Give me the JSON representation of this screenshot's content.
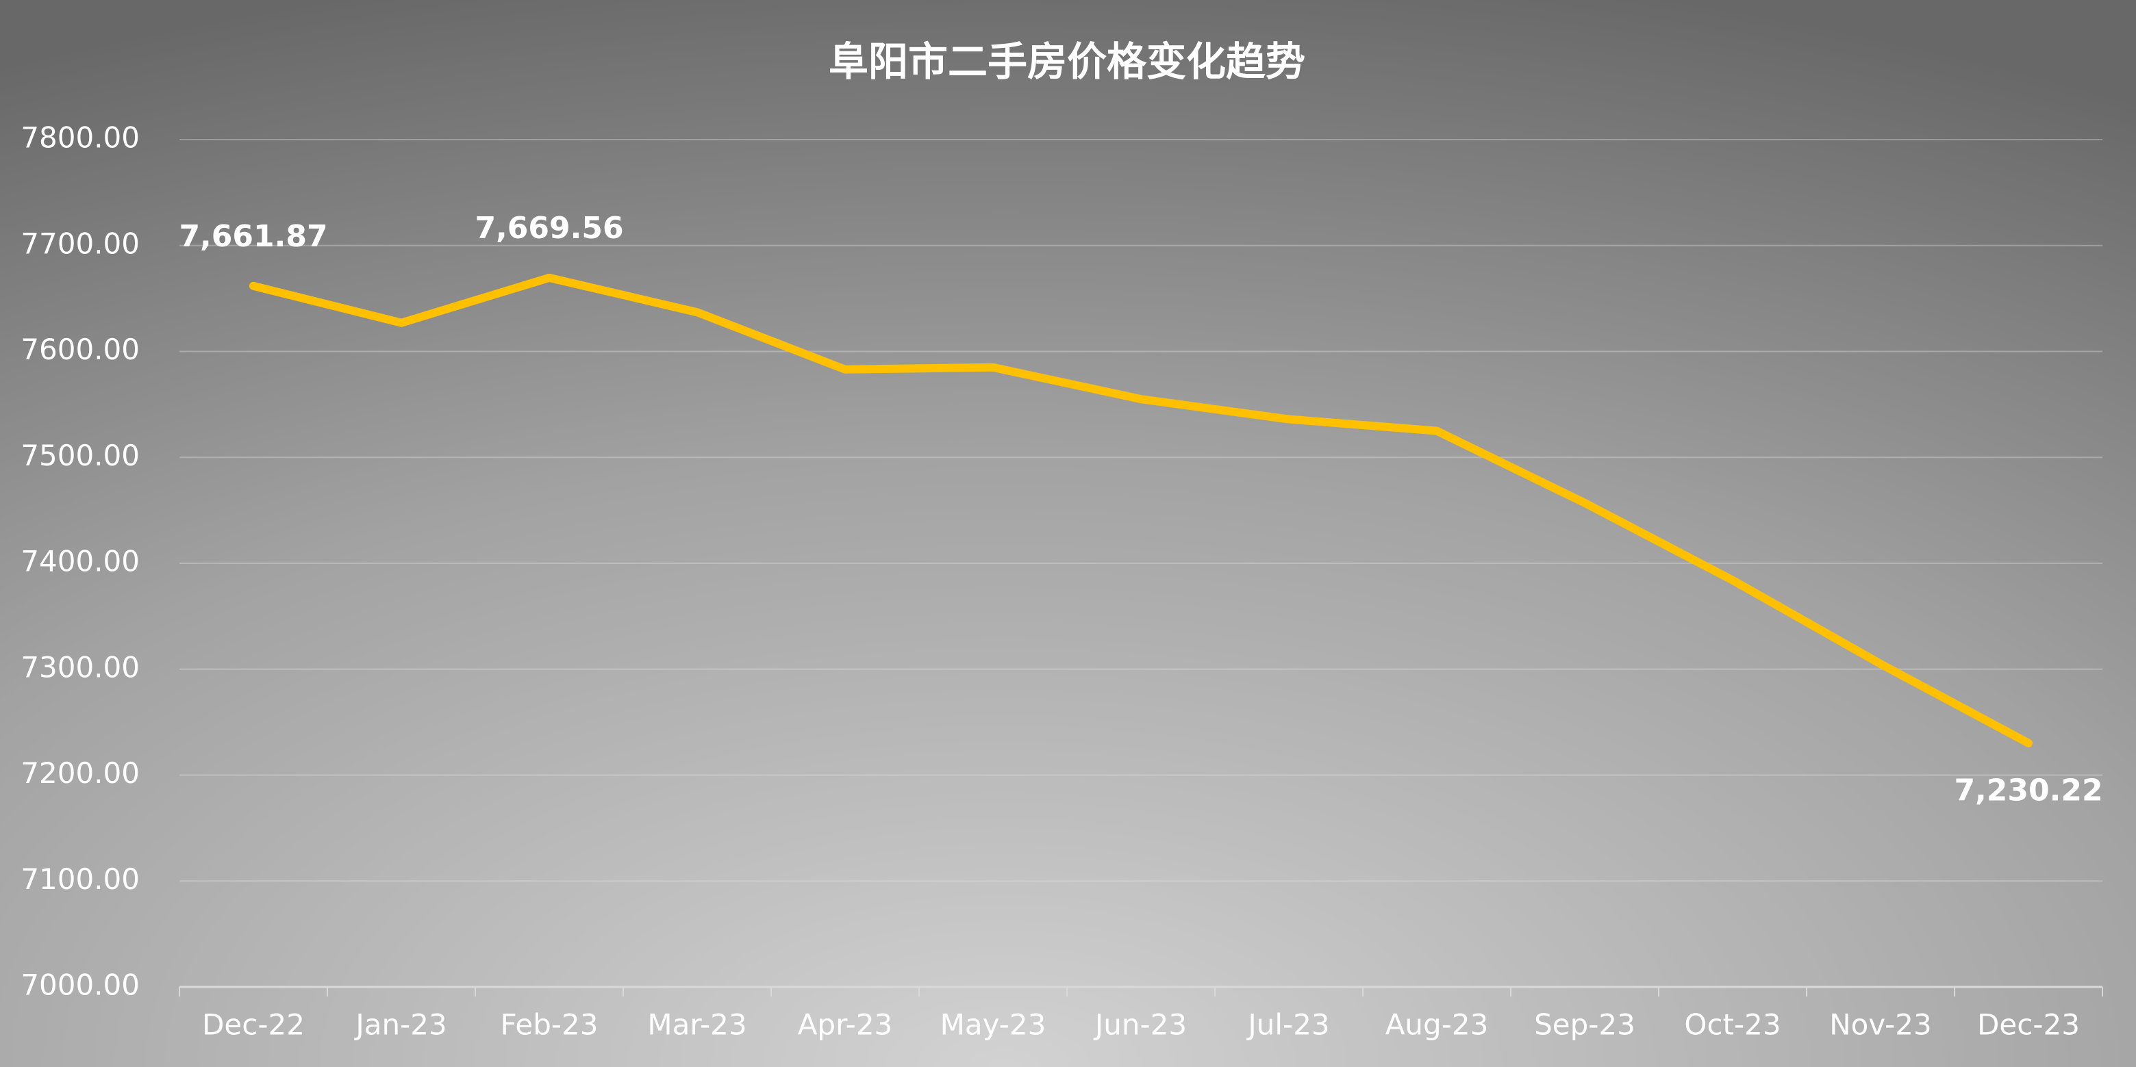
{
  "chart_data": {
    "type": "line",
    "title": "阜阳市二手房价格变化趋势",
    "categories": [
      "Dec-22",
      "Jan-23",
      "Feb-23",
      "Mar-23",
      "Apr-23",
      "May-23",
      "Jun-23",
      "Jul-23",
      "Aug-23",
      "Sep-23",
      "Oct-23",
      "Nov-23",
      "Dec-23"
    ],
    "values": [
      7661.87,
      7627,
      7669.56,
      7637,
      7583,
      7585,
      7555,
      7536,
      7525,
      7457,
      7384,
      7305,
      7230.22
    ],
    "value_labels": [
      "7,661.87",
      null,
      "7,669.56",
      null,
      null,
      null,
      null,
      null,
      null,
      null,
      null,
      null,
      "7,230.22"
    ],
    "color": "#ffc000",
    "ylim": [
      7000,
      7800
    ],
    "yticks": [
      {
        "value": 7000,
        "label": "7000.00"
      },
      {
        "value": 7100,
        "label": "7100.00"
      },
      {
        "value": 7200,
        "label": "7200.00"
      },
      {
        "value": 7300,
        "label": "7300.00"
      },
      {
        "value": 7400,
        "label": "7400.00"
      },
      {
        "value": 7500,
        "label": "7500.00"
      },
      {
        "value": 7600,
        "label": "7600.00"
      },
      {
        "value": 7700,
        "label": "7700.00"
      },
      {
        "value": 7800,
        "label": "7800.00"
      }
    ],
    "grid": true
  }
}
